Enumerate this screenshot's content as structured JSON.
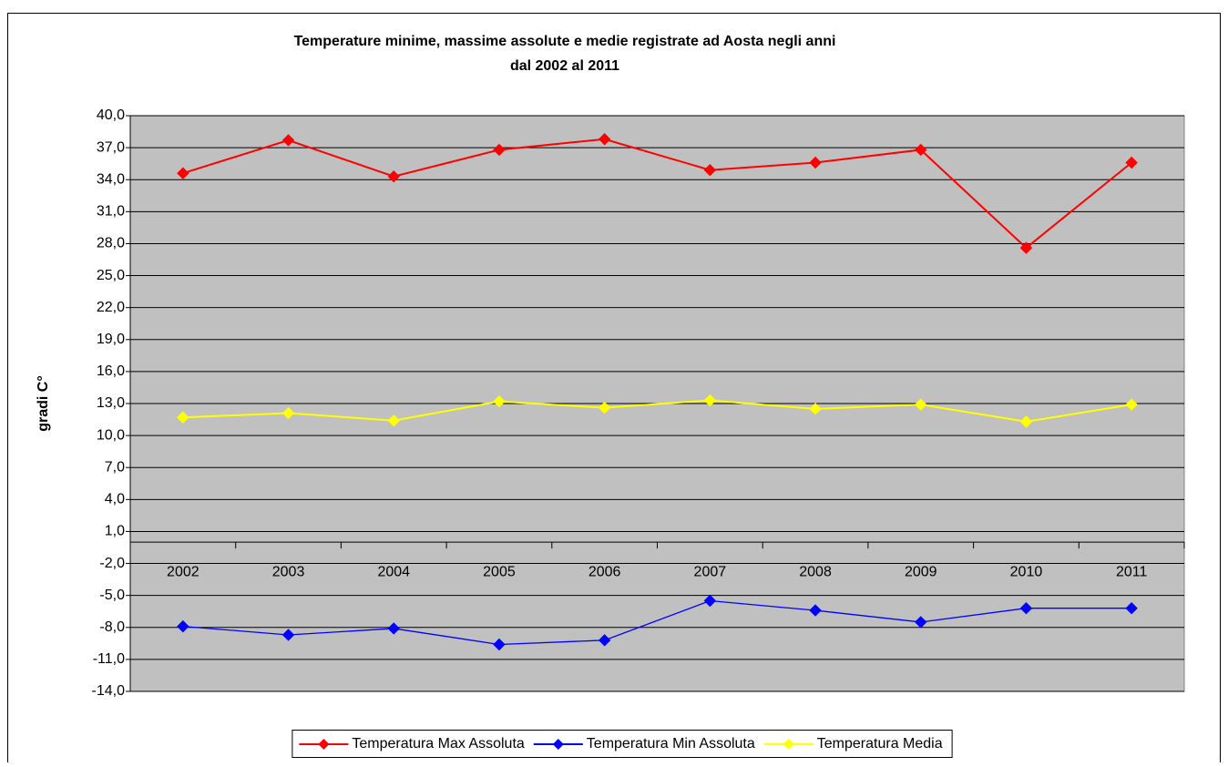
{
  "chart_data": {
    "type": "line",
    "title": [
      "Temperature minime, massime assolute e medie registrate ad Aosta negli anni",
      "dal 2002 al  2011"
    ],
    "ylabel": "gradi C°",
    "categories": [
      "2002",
      "2003",
      "2004",
      "2005",
      "2006",
      "2007",
      "2008",
      "2009",
      "2010",
      "2011"
    ],
    "series": [
      {
        "name": "Temperatura Max Assoluta",
        "color": "#ff0000",
        "values": [
          34.6,
          37.7,
          34.3,
          36.8,
          37.8,
          34.9,
          35.6,
          36.8,
          27.6,
          35.6
        ]
      },
      {
        "name": "Temperatura Min Assoluta",
        "color": "#0000ff",
        "values": [
          -7.9,
          -8.7,
          -8.1,
          -9.6,
          -9.2,
          -5.5,
          -6.4,
          -7.5,
          -6.2,
          -6.2
        ]
      },
      {
        "name": "Temperatura Media",
        "color": "#ffff00",
        "values": [
          11.7,
          12.1,
          11.4,
          13.2,
          12.6,
          13.3,
          12.5,
          12.9,
          11.3,
          12.9
        ]
      }
    ],
    "ylim": [
      -14,
      40
    ],
    "yticks": [
      {
        "value": 40,
        "label": "40,0"
      },
      {
        "value": 37,
        "label": "37,0"
      },
      {
        "value": 34,
        "label": "34,0"
      },
      {
        "value": 31,
        "label": "31,0"
      },
      {
        "value": 28,
        "label": "28,0"
      },
      {
        "value": 25,
        "label": "25,0"
      },
      {
        "value": 22,
        "label": "22,0"
      },
      {
        "value": 19,
        "label": "19,0"
      },
      {
        "value": 16,
        "label": "16,0"
      },
      {
        "value": 13,
        "label": "13,0"
      },
      {
        "value": 10,
        "label": "10,0"
      },
      {
        "value": 7,
        "label": "7,0"
      },
      {
        "value": 4,
        "label": "4,0"
      },
      {
        "value": 1,
        "label": "1,0"
      },
      {
        "value": -2,
        "label": "-2,0"
      },
      {
        "value": -5,
        "label": "-5,0"
      },
      {
        "value": -8,
        "label": "-8,0"
      },
      {
        "value": -11,
        "label": "-11,0"
      },
      {
        "value": -14,
        "label": "-14,0"
      }
    ],
    "grid": true,
    "legend": "bottom",
    "plot_background": "#c0c0c0"
  }
}
